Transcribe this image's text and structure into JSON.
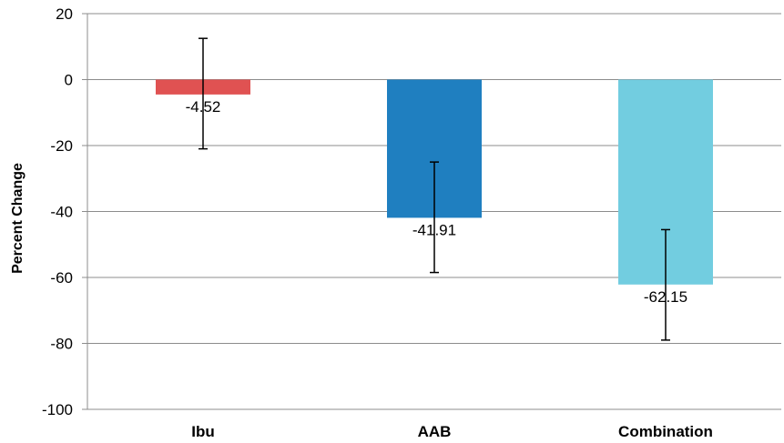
{
  "chart_data": {
    "type": "bar",
    "categories": [
      "Ibu",
      "AAB",
      "Combination"
    ],
    "values": [
      -4.52,
      -41.91,
      -62.15
    ],
    "value_labels": [
      "-4.52",
      "-41.91",
      "-62.15"
    ],
    "error_bars": [
      {
        "low": -21,
        "high": 12.5
      },
      {
        "low": -58.5,
        "high": -25
      },
      {
        "low": -79,
        "high": -45.5
      }
    ],
    "colors": [
      "#e05252",
      "#1f7fc0",
      "#72cde0"
    ],
    "ylabel": "Percent Change",
    "ylim": [
      -100,
      20
    ],
    "yticks": [
      20,
      0,
      -20,
      -40,
      -60,
      -80,
      -100
    ],
    "ytick_labels": [
      "20",
      "0",
      "-20",
      "-40",
      "-60",
      "-80",
      "-100"
    ],
    "grid": true,
    "legend": "none"
  }
}
